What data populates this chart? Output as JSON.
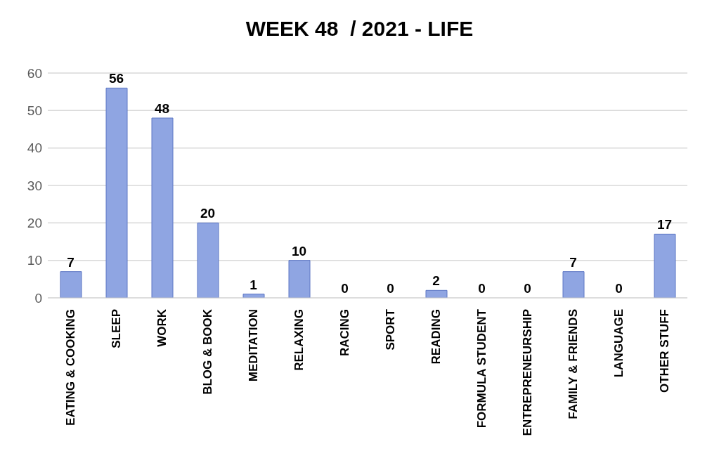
{
  "chart_data": {
    "type": "bar",
    "title": "WEEK 48  / 2021 - LIFE",
    "categories": [
      "EATING & COOKING",
      "SLEEP",
      "WORK",
      "BLOG & BOOK",
      "MEDITATION",
      "RELAXING",
      "RACING",
      "SPORT",
      "READING",
      "FORMULA STUDENT",
      "ENTREPRENEURSHIP",
      "FAMILY & FRIENDS",
      "LANGUAGE",
      "OTHER STUFF"
    ],
    "values": [
      7,
      56,
      48,
      20,
      1,
      10,
      0,
      0,
      2,
      0,
      0,
      7,
      0,
      17
    ],
    "color": "#8fa5e2",
    "ylim": [
      0,
      60
    ],
    "yticks": [
      0,
      10,
      20,
      30,
      40,
      50,
      60
    ],
    "grid": "y",
    "data_labels": true
  }
}
